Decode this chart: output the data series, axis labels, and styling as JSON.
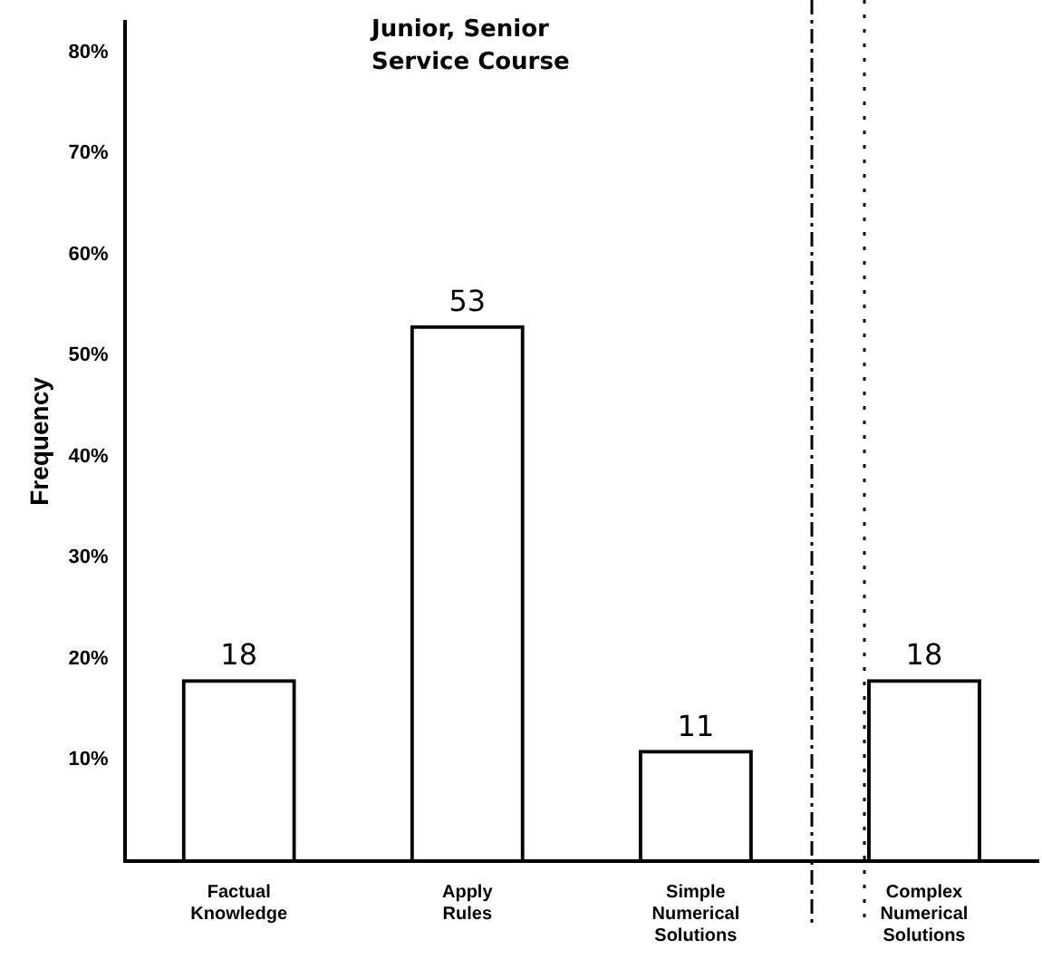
{
  "chart_data": {
    "type": "bar",
    "title": "Junior, Senior Service Course",
    "ylabel": "Frequency",
    "categories": [
      "Factual Knowledge",
      "Apply Rules",
      "Simple Numerical Solutions",
      "Complex Numerical Solutions"
    ],
    "values": [
      18,
      53,
      11,
      18
    ],
    "color": "#000000",
    "data_labels": true,
    "ylim": [
      0,
      83
    ],
    "yticks": [
      {
        "value": 10,
        "label": "10%"
      },
      {
        "value": 20,
        "label": "20%"
      },
      {
        "value": 30,
        "label": "30%"
      },
      {
        "value": 40,
        "label": "40%"
      },
      {
        "value": 50,
        "label": "50%"
      },
      {
        "value": 60,
        "label": "60%"
      },
      {
        "value": 70,
        "label": "70%"
      },
      {
        "value": 80,
        "label": "80%"
      }
    ]
  }
}
